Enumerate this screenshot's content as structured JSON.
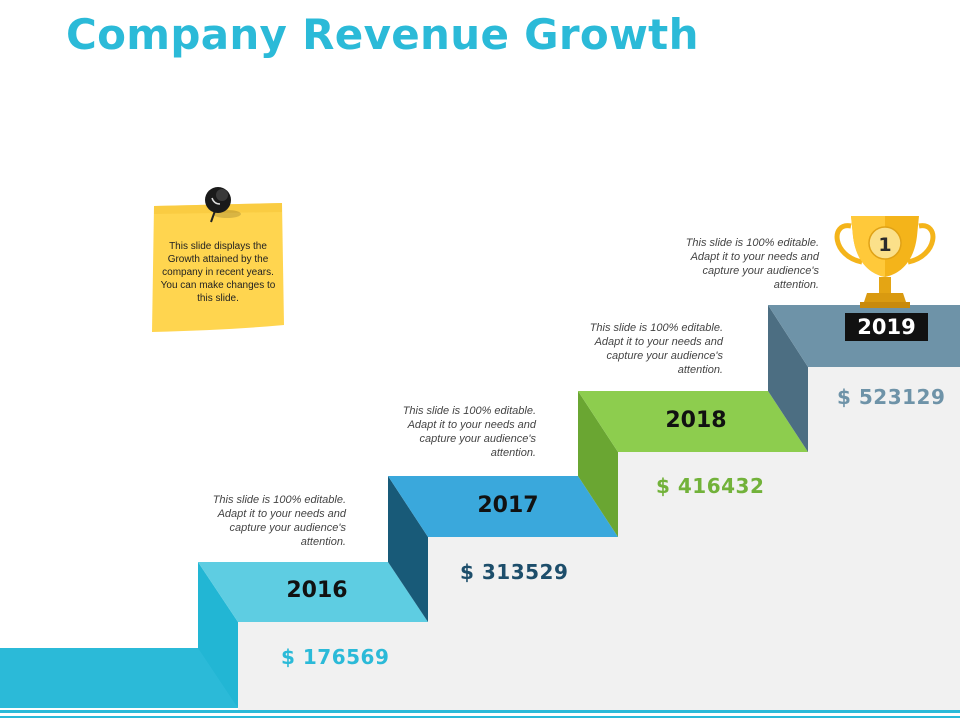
{
  "title": "Company Revenue Growth",
  "note": "This slide displays the Growth attained by the company in recent years. You can make changes to this slide.",
  "colors": {
    "title": "#2bbad8",
    "step_2016": "#5ecde2",
    "step_2017": "#3aa8dc",
    "step_2018": "#8dcd4e",
    "step_2019": "#6e93a8",
    "trophy": "#f4b41a",
    "note": "#ffd54f"
  },
  "steps": [
    {
      "year": "2016",
      "value": "$ 176569",
      "description": "This slide is 100% editable. Adapt it to your needs and capture your audience's attention."
    },
    {
      "year": "2017",
      "value": "$ 313529",
      "description": "This slide is 100% editable. Adapt it to your needs and capture your audience's attention."
    },
    {
      "year": "2018",
      "value": "$ 416432",
      "description": "This slide is 100% editable. Adapt it to your needs and capture your audience's attention."
    },
    {
      "year": "2019",
      "value": "$ 523129",
      "description": "This slide is 100% editable. Adapt it to your needs and capture your audience's attention."
    }
  ],
  "trophy": {
    "icon": "trophy-icon",
    "rank": "1"
  },
  "icons": [
    "pushpin-icon",
    "trophy-icon"
  ]
}
